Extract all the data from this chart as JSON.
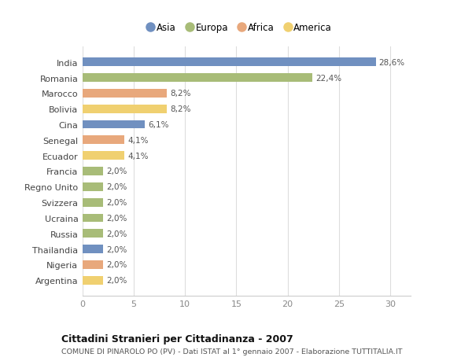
{
  "countries": [
    "India",
    "Romania",
    "Marocco",
    "Bolivia",
    "Cina",
    "Senegal",
    "Ecuador",
    "Francia",
    "Regno Unito",
    "Svizzera",
    "Ucraina",
    "Russia",
    "Thailandia",
    "Nigeria",
    "Argentina"
  ],
  "values": [
    28.6,
    22.4,
    8.2,
    8.2,
    6.1,
    4.1,
    4.1,
    2.0,
    2.0,
    2.0,
    2.0,
    2.0,
    2.0,
    2.0,
    2.0
  ],
  "labels": [
    "28,6%",
    "22,4%",
    "8,2%",
    "8,2%",
    "6,1%",
    "4,1%",
    "4,1%",
    "2,0%",
    "2,0%",
    "2,0%",
    "2,0%",
    "2,0%",
    "2,0%",
    "2,0%",
    "2,0%"
  ],
  "continents": [
    "Asia",
    "Europa",
    "Africa",
    "America",
    "Asia",
    "Africa",
    "America",
    "Europa",
    "Europa",
    "Europa",
    "Europa",
    "Europa",
    "Asia",
    "Africa",
    "America"
  ],
  "colors": {
    "Asia": "#7090c0",
    "Europa": "#a8bc78",
    "Africa": "#e8a87c",
    "America": "#f0d070"
  },
  "title": "Cittadini Stranieri per Cittadinanza - 2007",
  "subtitle": "COMUNE DI PINAROLO PO (PV) - Dati ISTAT al 1° gennaio 2007 - Elaborazione TUTTITALIA.IT",
  "xlim": [
    0,
    32
  ],
  "xticks": [
    0,
    5,
    10,
    15,
    20,
    25,
    30
  ],
  "background_color": "#ffffff",
  "bar_height": 0.55,
  "bar_alpha": 1.0
}
